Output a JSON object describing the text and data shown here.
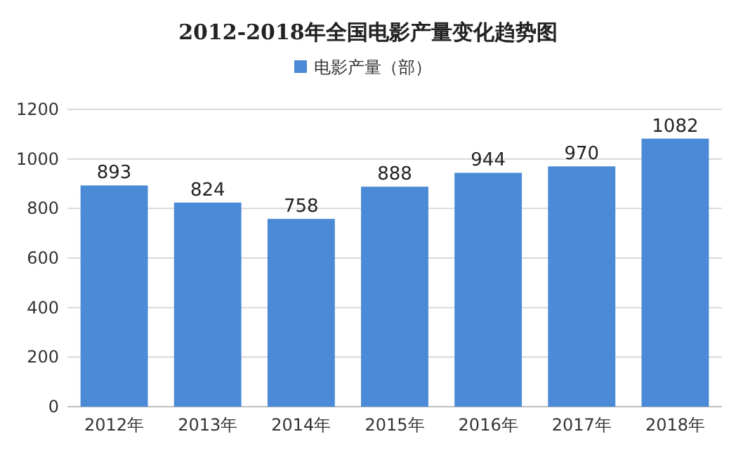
{
  "chart_data": {
    "type": "bar",
    "title": "2012-2018年全国电影产量变化趋势图",
    "categories": [
      "2012年",
      "2013年",
      "2014年",
      "2015年",
      "2016年",
      "2017年",
      "2018年"
    ],
    "series": [
      {
        "name": "电影产量（部）",
        "color": "#4a8ad6",
        "values": [
          893,
          824,
          758,
          888,
          944,
          970,
          1082
        ]
      }
    ],
    "ylim": [
      0,
      1200
    ],
    "yticks": [
      0,
      200,
      400,
      600,
      800,
      1000,
      1200
    ],
    "grid": "y",
    "legend": "top",
    "data_labels": true
  }
}
